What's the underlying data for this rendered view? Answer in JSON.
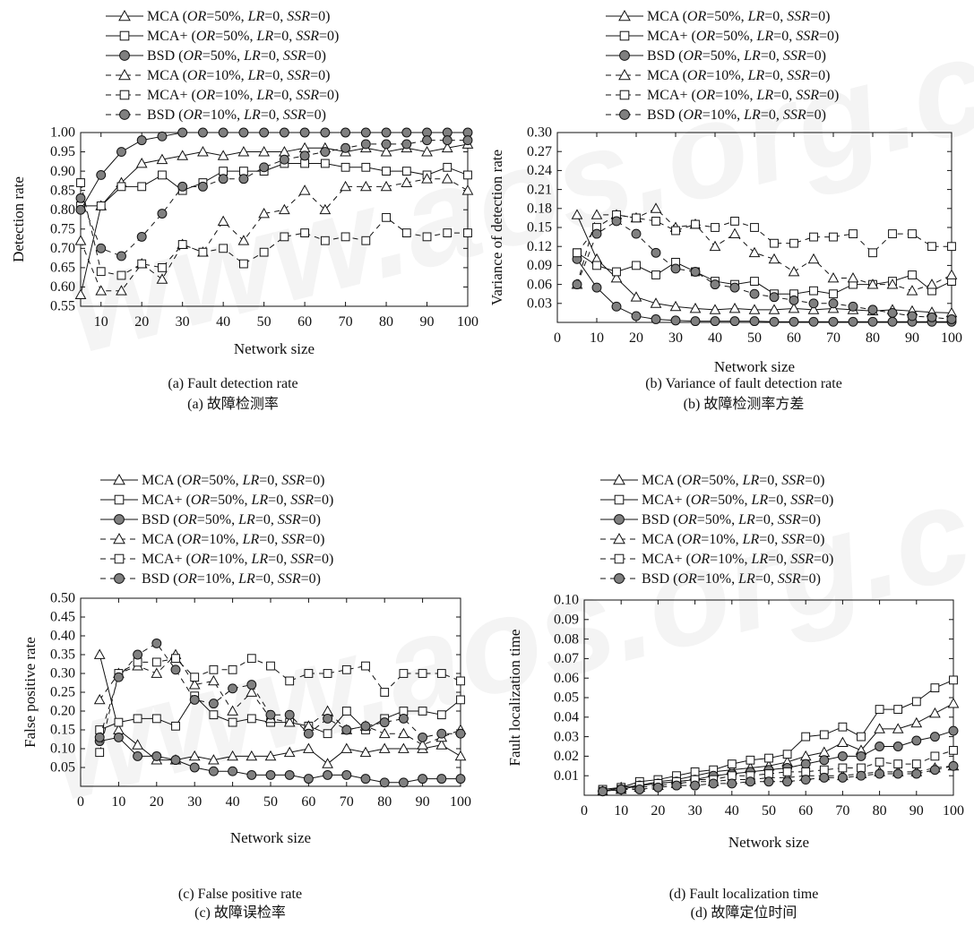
{
  "chart_data": [
    {
      "type": "line",
      "panel": "a",
      "caption_en": "(a) Fault detection rate",
      "caption_zh": "(a)  故障检测率",
      "xlabel": "Network size",
      "ylabel": "Detection rate",
      "xlim": [
        5,
        100
      ],
      "ylim": [
        0.55,
        1.0
      ],
      "xticks": [
        10,
        20,
        30,
        40,
        50,
        60,
        70,
        80,
        90,
        100
      ],
      "yticks": [
        0.55,
        0.6,
        0.65,
        0.7,
        0.75,
        0.8,
        0.85,
        0.9,
        0.95,
        1.0
      ],
      "ytick_decimals": 2,
      "legend_position": "top",
      "x": [
        5,
        10,
        15,
        20,
        25,
        30,
        35,
        40,
        45,
        50,
        55,
        60,
        65,
        70,
        75,
        80,
        85,
        90,
        95,
        100
      ],
      "series": [
        {
          "name": "MCA (OR=50%, LR=0, SSR=0)",
          "marker": "triangle",
          "dashed": false,
          "values": [
            0.58,
            0.81,
            0.87,
            0.92,
            0.93,
            0.94,
            0.95,
            0.94,
            0.95,
            0.95,
            0.95,
            0.96,
            0.96,
            0.95,
            0.96,
            0.95,
            0.96,
            0.95,
            0.96,
            0.97
          ]
        },
        {
          "name": "MCA+ (OR=50%, LR=0, SSR=0)",
          "marker": "square",
          "dashed": false,
          "values": [
            0.81,
            0.81,
            0.86,
            0.86,
            0.89,
            0.85,
            0.87,
            0.9,
            0.9,
            0.9,
            0.92,
            0.92,
            0.92,
            0.91,
            0.91,
            0.9,
            0.9,
            0.89,
            0.91,
            0.89
          ]
        },
        {
          "name": "BSD (OR=50%, LR=0, SSR=0)",
          "marker": "circle",
          "dashed": false,
          "values": [
            0.8,
            0.89,
            0.95,
            0.98,
            0.99,
            1.0,
            1.0,
            1.0,
            1.0,
            1.0,
            1.0,
            1.0,
            1.0,
            1.0,
            1.0,
            1.0,
            1.0,
            1.0,
            1.0,
            1.0
          ]
        },
        {
          "name": "MCA (OR=10%, LR=0, SSR=0)",
          "marker": "triangle",
          "dashed": true,
          "values": [
            0.72,
            0.59,
            0.59,
            0.66,
            0.62,
            0.71,
            0.69,
            0.77,
            0.72,
            0.79,
            0.8,
            0.85,
            0.8,
            0.86,
            0.86,
            0.86,
            0.87,
            0.88,
            0.88,
            0.85
          ]
        },
        {
          "name": "MCA+ (OR=10%, LR=0, SSR=0)",
          "marker": "square",
          "dashed": true,
          "values": [
            0.87,
            0.64,
            0.63,
            0.66,
            0.65,
            0.71,
            0.69,
            0.7,
            0.66,
            0.69,
            0.73,
            0.74,
            0.72,
            0.73,
            0.72,
            0.78,
            0.74,
            0.73,
            0.74,
            0.74
          ]
        },
        {
          "name": "BSD (OR=10%, LR=0, SSR=0)",
          "marker": "circle",
          "dashed": true,
          "values": [
            0.83,
            0.7,
            0.68,
            0.73,
            0.79,
            0.86,
            0.86,
            0.88,
            0.88,
            0.91,
            0.93,
            0.94,
            0.95,
            0.96,
            0.97,
            0.97,
            0.97,
            0.98,
            0.98,
            0.98
          ]
        }
      ]
    },
    {
      "type": "line",
      "panel": "b",
      "caption_en": "(b) Variance of fault detection rate",
      "caption_zh": "(b)  故障检测率方差",
      "xlabel": "Network size",
      "ylabel": "Variance of detection rate",
      "xlim": [
        0,
        100
      ],
      "ylim": [
        0,
        0.3
      ],
      "xticks": [
        0,
        10,
        20,
        30,
        40,
        50,
        60,
        70,
        80,
        90,
        100
      ],
      "yticks": [
        0.03,
        0.06,
        0.09,
        0.12,
        0.15,
        0.18,
        0.21,
        0.24,
        0.27,
        0.3
      ],
      "ytick_decimals": 2,
      "legend_position": "top",
      "x": [
        5,
        10,
        15,
        20,
        25,
        30,
        35,
        40,
        45,
        50,
        55,
        60,
        65,
        70,
        75,
        80,
        85,
        90,
        95,
        100
      ],
      "series": [
        {
          "name": "MCA (OR=50%, LR=0, SSR=0)",
          "marker": "triangle",
          "dashed": false,
          "values": [
            0.17,
            0.1,
            0.07,
            0.04,
            0.03,
            0.025,
            0.022,
            0.02,
            0.022,
            0.02,
            0.02,
            0.022,
            0.02,
            0.022,
            0.02,
            0.018,
            0.02,
            0.018,
            0.016,
            0.015
          ]
        },
        {
          "name": "MCA+ (OR=50%, LR=0, SSR=0)",
          "marker": "square",
          "dashed": false,
          "values": [
            0.11,
            0.09,
            0.08,
            0.09,
            0.075,
            0.095,
            0.08,
            0.065,
            0.06,
            0.065,
            0.045,
            0.045,
            0.05,
            0.045,
            0.06,
            0.06,
            0.065,
            0.075,
            0.05,
            0.065
          ]
        },
        {
          "name": "BSD (OR=50%, LR=0, SSR=0)",
          "marker": "circle",
          "dashed": false,
          "values": [
            0.1,
            0.055,
            0.025,
            0.01,
            0.005,
            0.003,
            0.002,
            0.002,
            0.002,
            0.002,
            0.001,
            0.001,
            0.001,
            0.001,
            0.001,
            0.001,
            0.001,
            0.001,
            0.001,
            0.001
          ]
        },
        {
          "name": "MCA (OR=10%, LR=0, SSR=0)",
          "marker": "triangle",
          "dashed": true,
          "values": [
            0.06,
            0.17,
            0.17,
            0.165,
            0.18,
            0.15,
            0.155,
            0.12,
            0.14,
            0.11,
            0.1,
            0.08,
            0.1,
            0.07,
            0.07,
            0.06,
            0.06,
            0.05,
            0.06,
            0.075
          ]
        },
        {
          "name": "MCA+ (OR=10%, LR=0, SSR=0)",
          "marker": "square",
          "dashed": true,
          "values": [
            0.11,
            0.15,
            0.17,
            0.165,
            0.16,
            0.145,
            0.155,
            0.15,
            0.16,
            0.15,
            0.125,
            0.125,
            0.135,
            0.135,
            0.14,
            0.11,
            0.14,
            0.14,
            0.12,
            0.12
          ]
        },
        {
          "name": "BSD (OR=10%, LR=0, SSR=0)",
          "marker": "circle",
          "dashed": true,
          "values": [
            0.06,
            0.14,
            0.16,
            0.14,
            0.11,
            0.085,
            0.08,
            0.06,
            0.055,
            0.045,
            0.04,
            0.035,
            0.03,
            0.03,
            0.025,
            0.02,
            0.015,
            0.01,
            0.008,
            0.005
          ]
        }
      ]
    },
    {
      "type": "line",
      "panel": "c",
      "caption_en": "(c) False positive rate",
      "caption_zh": "(c)  故障误检率",
      "xlabel": "Network size",
      "ylabel": "False positive rate",
      "xlim": [
        0,
        100
      ],
      "ylim": [
        0,
        0.5
      ],
      "xticks": [
        0,
        10,
        20,
        30,
        40,
        50,
        60,
        70,
        80,
        90,
        100
      ],
      "yticks": [
        0.05,
        0.1,
        0.15,
        0.2,
        0.25,
        0.3,
        0.35,
        0.4,
        0.45,
        0.5
      ],
      "ytick_decimals": 2,
      "legend_position": "top",
      "x": [
        5,
        10,
        15,
        20,
        25,
        30,
        35,
        40,
        45,
        50,
        55,
        60,
        65,
        70,
        75,
        80,
        85,
        90,
        95,
        100
      ],
      "series": [
        {
          "name": "MCA (OR=50%, LR=0, SSR=0)",
          "marker": "triangle",
          "dashed": false,
          "values": [
            0.35,
            0.15,
            0.11,
            0.07,
            0.07,
            0.08,
            0.07,
            0.08,
            0.08,
            0.08,
            0.09,
            0.1,
            0.06,
            0.1,
            0.09,
            0.1,
            0.1,
            0.1,
            0.11,
            0.08
          ]
        },
        {
          "name": "MCA+ (OR=50%, LR=0, SSR=0)",
          "marker": "square",
          "dashed": false,
          "values": [
            0.15,
            0.17,
            0.18,
            0.18,
            0.16,
            0.24,
            0.19,
            0.17,
            0.18,
            0.17,
            0.17,
            0.16,
            0.14,
            0.2,
            0.15,
            0.18,
            0.2,
            0.2,
            0.19,
            0.23
          ]
        },
        {
          "name": "BSD (OR=50%, LR=0, SSR=0)",
          "marker": "circle",
          "dashed": false,
          "values": [
            0.12,
            0.13,
            0.08,
            0.08,
            0.07,
            0.05,
            0.04,
            0.04,
            0.03,
            0.03,
            0.03,
            0.02,
            0.03,
            0.03,
            0.02,
            0.01,
            0.01,
            0.02,
            0.02,
            0.02
          ]
        },
        {
          "name": "MCA (OR=10%, LR=0, SSR=0)",
          "marker": "triangle",
          "dashed": true,
          "values": [
            0.23,
            0.3,
            0.32,
            0.3,
            0.35,
            0.27,
            0.28,
            0.2,
            0.25,
            0.18,
            0.17,
            0.16,
            0.2,
            0.15,
            0.16,
            0.14,
            0.14,
            0.11,
            0.13,
            0.15
          ]
        },
        {
          "name": "MCA+ (OR=10%, LR=0, SSR=0)",
          "marker": "square",
          "dashed": true,
          "values": [
            0.09,
            0.3,
            0.33,
            0.33,
            0.34,
            0.29,
            0.31,
            0.31,
            0.34,
            0.32,
            0.28,
            0.3,
            0.3,
            0.31,
            0.32,
            0.25,
            0.3,
            0.3,
            0.3,
            0.28
          ]
        },
        {
          "name": "BSD (OR=10%, LR=0, SSR=0)",
          "marker": "circle",
          "dashed": true,
          "values": [
            0.13,
            0.29,
            0.35,
            0.38,
            0.31,
            0.23,
            0.22,
            0.26,
            0.27,
            0.19,
            0.19,
            0.14,
            0.18,
            0.15,
            0.16,
            0.17,
            0.18,
            0.13,
            0.14,
            0.14
          ]
        }
      ]
    },
    {
      "type": "line",
      "panel": "d",
      "caption_en": "(d) Fault localization time",
      "caption_zh": "(d)  故障定位时间",
      "xlabel": "Network size",
      "ylabel": "Fault localization time",
      "xlim": [
        0,
        100
      ],
      "ylim": [
        0,
        0.1
      ],
      "xticks": [
        0,
        10,
        20,
        30,
        40,
        50,
        60,
        70,
        80,
        90,
        100
      ],
      "yticks": [
        0.01,
        0.02,
        0.03,
        0.04,
        0.05,
        0.06,
        0.07,
        0.08,
        0.09,
        0.1
      ],
      "ytick_decimals": 2,
      "legend_position": "top",
      "x": [
        5,
        10,
        15,
        20,
        25,
        30,
        35,
        40,
        45,
        50,
        55,
        60,
        65,
        70,
        75,
        80,
        85,
        90,
        95,
        100
      ],
      "series": [
        {
          "name": "MCA (OR=50%, LR=0, SSR=0)",
          "marker": "triangle",
          "dashed": false,
          "values": [
            0.002,
            0.004,
            0.005,
            0.007,
            0.008,
            0.01,
            0.012,
            0.013,
            0.014,
            0.015,
            0.017,
            0.02,
            0.022,
            0.027,
            0.023,
            0.034,
            0.034,
            0.037,
            0.042,
            0.047
          ]
        },
        {
          "name": "MCA+ (OR=50%, LR=0, SSR=0)",
          "marker": "square",
          "dashed": false,
          "values": [
            0.003,
            0.004,
            0.007,
            0.008,
            0.01,
            0.012,
            0.013,
            0.016,
            0.018,
            0.019,
            0.021,
            0.03,
            0.031,
            0.035,
            0.03,
            0.044,
            0.044,
            0.048,
            0.055,
            0.059
          ]
        },
        {
          "name": "BSD (OR=50%, LR=0, SSR=0)",
          "marker": "circle",
          "dashed": false,
          "values": [
            0.002,
            0.003,
            0.005,
            0.006,
            0.007,
            0.008,
            0.01,
            0.011,
            0.012,
            0.013,
            0.014,
            0.016,
            0.018,
            0.02,
            0.02,
            0.025,
            0.025,
            0.028,
            0.03,
            0.033
          ]
        },
        {
          "name": "MCA (OR=10%, LR=0, SSR=0)",
          "marker": "triangle",
          "dashed": true,
          "values": [
            0.002,
            0.003,
            0.004,
            0.005,
            0.006,
            0.007,
            0.007,
            0.008,
            0.008,
            0.009,
            0.009,
            0.01,
            0.01,
            0.01,
            0.011,
            0.012,
            0.012,
            0.012,
            0.014,
            0.015
          ]
        },
        {
          "name": "MCA+ (OR=10%, LR=0, SSR=0)",
          "marker": "square",
          "dashed": true,
          "values": [
            0.002,
            0.003,
            0.005,
            0.006,
            0.007,
            0.008,
            0.008,
            0.01,
            0.01,
            0.011,
            0.012,
            0.012,
            0.013,
            0.014,
            0.014,
            0.017,
            0.016,
            0.016,
            0.02,
            0.023
          ]
        },
        {
          "name": "BSD (OR=10%, LR=0, SSR=0)",
          "marker": "circle",
          "dashed": true,
          "values": [
            0.002,
            0.003,
            0.003,
            0.004,
            0.005,
            0.005,
            0.006,
            0.006,
            0.007,
            0.007,
            0.007,
            0.008,
            0.009,
            0.009,
            0.01,
            0.011,
            0.011,
            0.011,
            0.013,
            0.015
          ]
        }
      ]
    }
  ]
}
